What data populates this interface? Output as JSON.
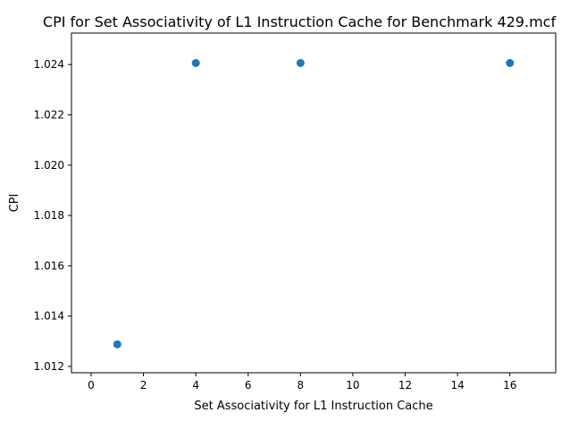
{
  "chart_data": {
    "type": "scatter",
    "title": "CPI for Set Associativity of L1 Instruction Cache for Benchmark 429.mcf",
    "xlabel": "Set Associativity for L1 Instruction Cache",
    "ylabel": "CPI",
    "xlim": [
      -0.75,
      17.75
    ],
    "ylim": [
      1.01175,
      1.02525
    ],
    "x_ticks": [
      0,
      2,
      4,
      6,
      8,
      10,
      12,
      14,
      16
    ],
    "y_ticks": [
      1.012,
      1.014,
      1.016,
      1.018,
      1.02,
      1.022,
      1.024
    ],
    "y_tick_labels": [
      "1.012",
      "1.014",
      "1.016",
      "1.018",
      "1.020",
      "1.022",
      "1.024"
    ],
    "grid": false,
    "points": [
      {
        "x": 1,
        "y": 1.01288
      },
      {
        "x": 4,
        "y": 1.02406
      },
      {
        "x": 8,
        "y": 1.02406
      },
      {
        "x": 16,
        "y": 1.02406
      }
    ],
    "marker_color": "#1f77b4"
  }
}
